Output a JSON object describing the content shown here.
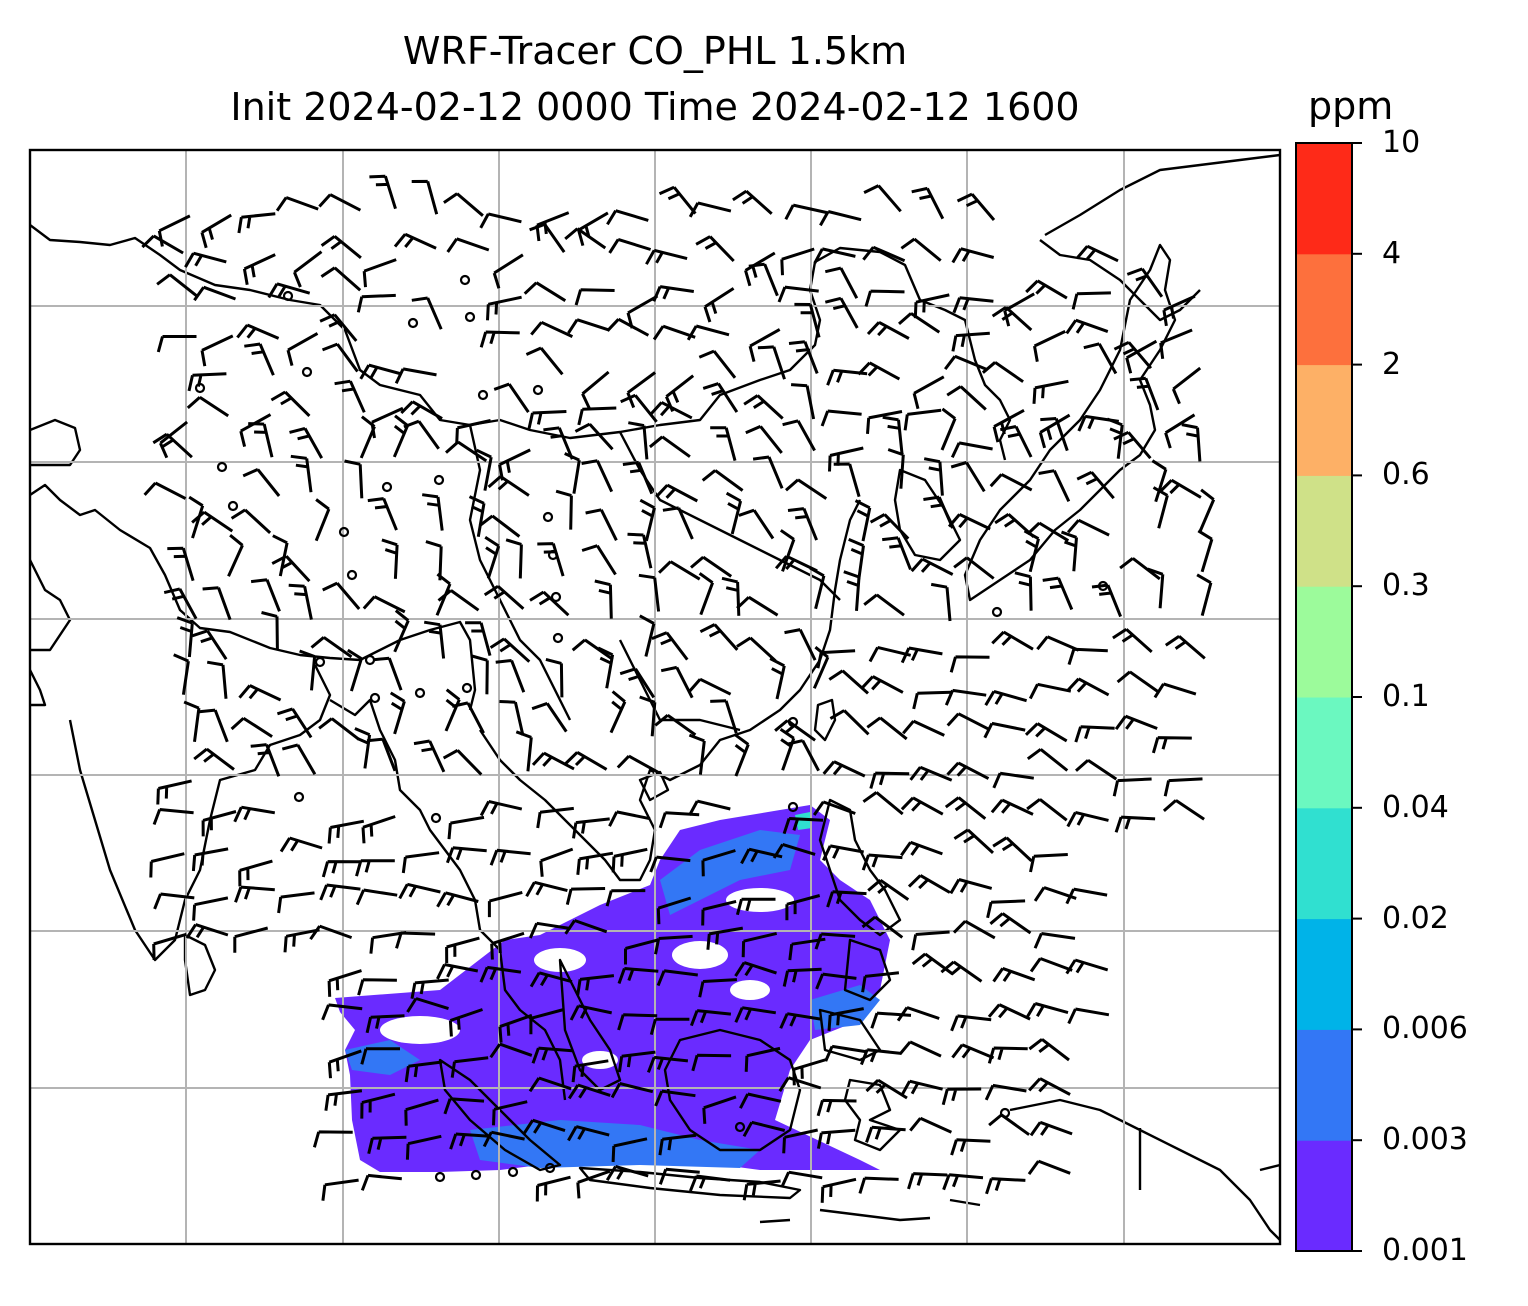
{
  "title": {
    "line1": "WRF-Tracer CO_PHL 1.5km",
    "line2": "Init 2024-02-12 0000 Time 2024-02-12 1600"
  },
  "colorbar": {
    "unit": "ppm",
    "levels": [
      "0.001",
      "0.003",
      "0.006",
      "0.02",
      "0.04",
      "0.1",
      "0.3",
      "0.6",
      "2",
      "4",
      "10"
    ],
    "colors": [
      "#6a2bff",
      "#3377f5",
      "#00b3e8",
      "#30e0d0",
      "#6bf8c0",
      "#9cfb9b",
      "#cfe188",
      "#fdb066",
      "#fd703d",
      "#fe2a18"
    ]
  },
  "colors": {
    "plume_low": "#6a2bff",
    "plume_mid": "#3377f5",
    "plume_high": "#30e0d0",
    "coast": "#000000",
    "grid": "#b4b4b4"
  }
}
